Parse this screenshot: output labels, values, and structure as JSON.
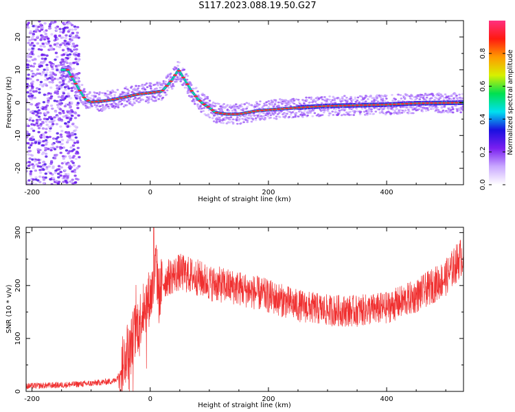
{
  "figure": {
    "title": "S117.2023.088.19.50.G27"
  },
  "chart_data": [
    {
      "type": "heatmap",
      "title": "",
      "xlabel": "Height of straight line (km)",
      "ylabel": "Frequency (Hz)",
      "xlim": [
        -210,
        530
      ],
      "ylim": [
        -25,
        25
      ],
      "x_ticks": [
        -200,
        0,
        200,
        400
      ],
      "y_ticks": [
        -20,
        -10,
        0,
        10,
        20
      ],
      "colorbar": {
        "label": "Normalized spectral amplitude",
        "range": [
          0,
          1
        ],
        "ticks": [
          0.0,
          0.2,
          0.4,
          0.6,
          0.8
        ],
        "colormap": [
          "#ffffff",
          "#c9a8ff",
          "#7a1ff0",
          "#1a10e0",
          "#00e0f0",
          "#00e050",
          "#d8f000",
          "#ff9a00",
          "#ff1a10",
          "#ff3080"
        ]
      },
      "ridge": {
        "x": [
          -140,
          -120,
          -110,
          -100,
          -80,
          -60,
          -40,
          -20,
          0,
          20,
          35,
          48,
          60,
          70,
          80,
          90,
          100,
          110,
          130,
          150,
          180,
          200,
          230,
          260,
          300,
          350,
          400,
          450,
          530
        ],
        "y": [
          10,
          4,
          1,
          0.2,
          0.5,
          1,
          1.8,
          2.6,
          3,
          3.5,
          6.5,
          10,
          6.5,
          3.6,
          1.2,
          -0.4,
          -1.5,
          -3,
          -3.5,
          -3.5,
          -2.5,
          -2.2,
          -1.8,
          -1.4,
          -1,
          -0.8,
          -0.6,
          -0.2,
          0
        ]
      },
      "grid": false
    },
    {
      "type": "line",
      "title": "",
      "xlabel": "Height of straight line (km)",
      "ylabel": "SNR (10 * v/v)",
      "xlim": [
        -210,
        530
      ],
      "ylim": [
        0,
        310
      ],
      "x_ticks": [
        -200,
        0,
        200,
        400
      ],
      "y_ticks": [
        0,
        100,
        200,
        300
      ],
      "color": "#f03030",
      "series": [
        {
          "x": [
            -210,
            -150,
            -100,
            -60,
            -50,
            -45,
            -40,
            -35,
            -30,
            -20,
            -10,
            0,
            5,
            10,
            15,
            20,
            30,
            50,
            80,
            100,
            150,
            200,
            250,
            300,
            350,
            400,
            450,
            500,
            530
          ],
          "values": [
            10,
            12,
            15,
            20,
            35,
            60,
            80,
            70,
            100,
            130,
            160,
            180,
            195,
            240,
            180,
            205,
            215,
            225,
            215,
            205,
            195,
            180,
            162,
            153,
            152,
            158,
            180,
            215,
            260
          ]
        }
      ],
      "grid": false
    }
  ]
}
